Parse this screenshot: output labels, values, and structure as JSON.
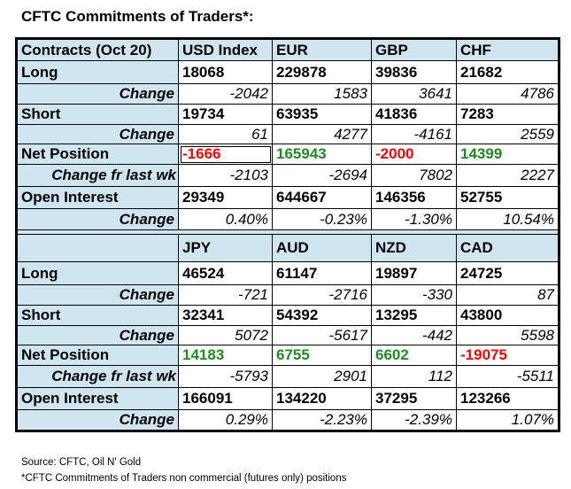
{
  "title": "CFTC Commitments of Traders*:",
  "colors": {
    "negative": "#ff0000",
    "positive": "#1e8c1e",
    "header_bg": "#cfe6f0"
  },
  "row_labels": {
    "long": "Long",
    "change": "Change",
    "short": "Short",
    "net": "Net Position",
    "change_wk": "Change fr last wk",
    "open_interest": "Open Interest"
  },
  "blocks": [
    {
      "corner": "Contracts (Oct 20)",
      "currencies": [
        "USD Index",
        "EUR",
        "GBP",
        "CHF"
      ],
      "long": [
        "18068",
        "229878",
        "39836",
        "21682"
      ],
      "long_change": [
        "-2042",
        "1583",
        "3641",
        "4786"
      ],
      "short": [
        "19734",
        "63935",
        "41836",
        "7283"
      ],
      "short_change": [
        "61",
        "4277",
        "-4161",
        "2559"
      ],
      "net": [
        "-1666",
        "165943",
        "-2000",
        "14399"
      ],
      "net_change_wk": [
        "-2103",
        "-2694",
        "7802",
        "2227"
      ],
      "open_interest": [
        "29349",
        "644667",
        "146356",
        "52755"
      ],
      "oi_change": [
        "0.40%",
        "-0.23%",
        "-1.30%",
        "10.54%"
      ]
    },
    {
      "corner": "",
      "currencies": [
        "JPY",
        "AUD",
        "NZD",
        "CAD"
      ],
      "long": [
        "46524",
        "61147",
        "19897",
        "24725"
      ],
      "long_change": [
        "-721",
        "-2716",
        "-330",
        "87"
      ],
      "short": [
        "32341",
        "54392",
        "13295",
        "43800"
      ],
      "short_change": [
        "5072",
        "-5617",
        "-442",
        "5598"
      ],
      "net": [
        "14183",
        "6755",
        "6602",
        "-19075"
      ],
      "net_change_wk": [
        "-5793",
        "2901",
        "112",
        "-5511"
      ],
      "open_interest": [
        "166091",
        "134220",
        "37295",
        "123266"
      ],
      "oi_change": [
        "0.29%",
        "-2.23%",
        "-2.39%",
        "1.07%"
      ]
    }
  ],
  "footer": {
    "source": "Source: CFTC, Oil N' Gold",
    "note": "*CFTC Commitments of Traders non commercial (futures only) positions"
  }
}
